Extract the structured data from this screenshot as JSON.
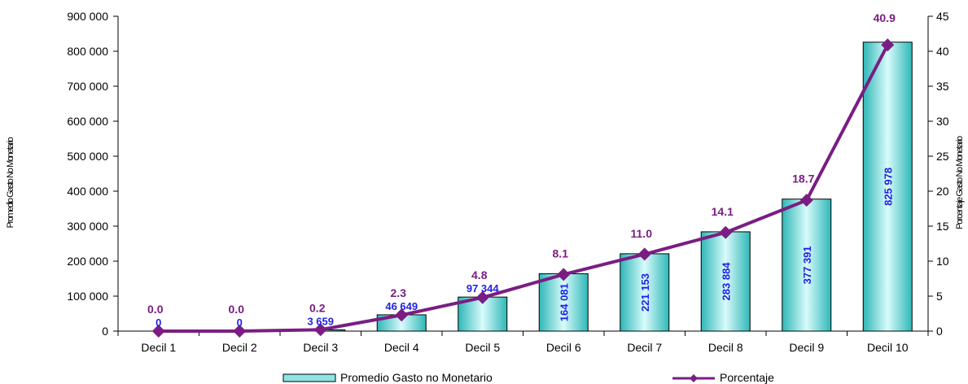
{
  "chart_data": {
    "type": "bar+line",
    "categories": [
      "Decil 1",
      "Decil 2",
      "Decil 3",
      "Decil 4",
      "Decil 5",
      "Decil 6",
      "Decil 7",
      "Decil 8",
      "Decil 9",
      "Decil 10"
    ],
    "series": [
      {
        "name": "Promedio Gasto no Monetario",
        "type": "bar",
        "axis": "left",
        "values": [
          0,
          0,
          3659,
          46649,
          97344,
          164081,
          221153,
          283884,
          377391,
          825978
        ],
        "labels": [
          "0",
          "0",
          "3 659",
          "46 649",
          "97 344",
          "164 081",
          "221 153",
          "283 884",
          "377 391",
          "825 978"
        ],
        "color": "#8fe3e3"
      },
      {
        "name": "Porcentaje",
        "type": "line",
        "axis": "right",
        "values": [
          0.0,
          0.0,
          0.2,
          2.3,
          4.8,
          8.1,
          11.0,
          14.1,
          18.7,
          40.9
        ],
        "labels": [
          "0.0",
          "0.0",
          "0.2",
          "2.3",
          "4.8",
          "8.1",
          "11.0",
          "14.1",
          "18.7",
          "40.9"
        ],
        "color": "#7a1d83"
      }
    ],
    "ylabel": "Promedio Gasto No Monetario",
    "y2label": "Porcentaje Gasto No Monetario",
    "ylim": [
      0,
      900000
    ],
    "y2lim": [
      0,
      45
    ],
    "yticks": [
      0,
      100000,
      200000,
      300000,
      400000,
      500000,
      600000,
      700000,
      800000,
      900000
    ],
    "yticklabels": [
      "0",
      "100 000",
      "200 000",
      "300 000",
      "400 000",
      "500 000",
      "600 000",
      "700 000",
      "800 000",
      "900 000"
    ],
    "y2ticks": [
      0,
      5,
      10,
      15,
      20,
      25,
      30,
      35,
      40,
      45
    ],
    "grid": false,
    "legend_position": "bottom"
  }
}
